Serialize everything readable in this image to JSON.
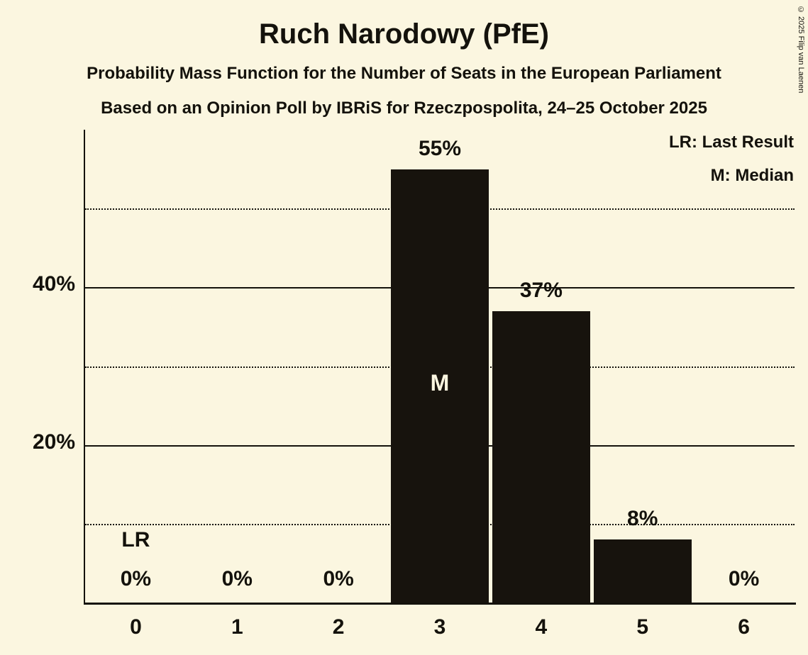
{
  "title": "Ruch Narodowy (PfE)",
  "subtitle1": "Probability Mass Function for the Number of Seats in the European Parliament",
  "subtitle2": "Based on an Opinion Poll by IBRiS for Rzeczpospolita, 24–25 October 2025",
  "legend": {
    "lr": "LR: Last Result",
    "m": "M: Median"
  },
  "copyright": "© 2025 Filip van Laenen",
  "chart_data": {
    "type": "bar",
    "categories": [
      "0",
      "1",
      "2",
      "3",
      "4",
      "5",
      "6"
    ],
    "values": [
      0,
      0,
      0,
      55,
      37,
      8,
      0
    ],
    "value_labels": [
      "0%",
      "0%",
      "0%",
      "55%",
      "37%",
      "8%",
      "0%"
    ],
    "title": "Ruch Narodowy (PfE)",
    "xlabel": "",
    "ylabel": "",
    "ylim": [
      0,
      60
    ],
    "yticks_solid": [
      20,
      40
    ],
    "yticks_dotted": [
      10,
      30,
      50
    ],
    "ytick_labels": [
      {
        "value": 20,
        "label": "20%"
      },
      {
        "value": 40,
        "label": "40%"
      }
    ],
    "legend_position": "top-right",
    "grid": "horizontal",
    "annotations": {
      "median_category": "3",
      "median_label": "M",
      "last_result_category": "0",
      "last_result_label": "LR"
    },
    "bar_color": "#17130D",
    "background_color": "#FBF6E0"
  }
}
